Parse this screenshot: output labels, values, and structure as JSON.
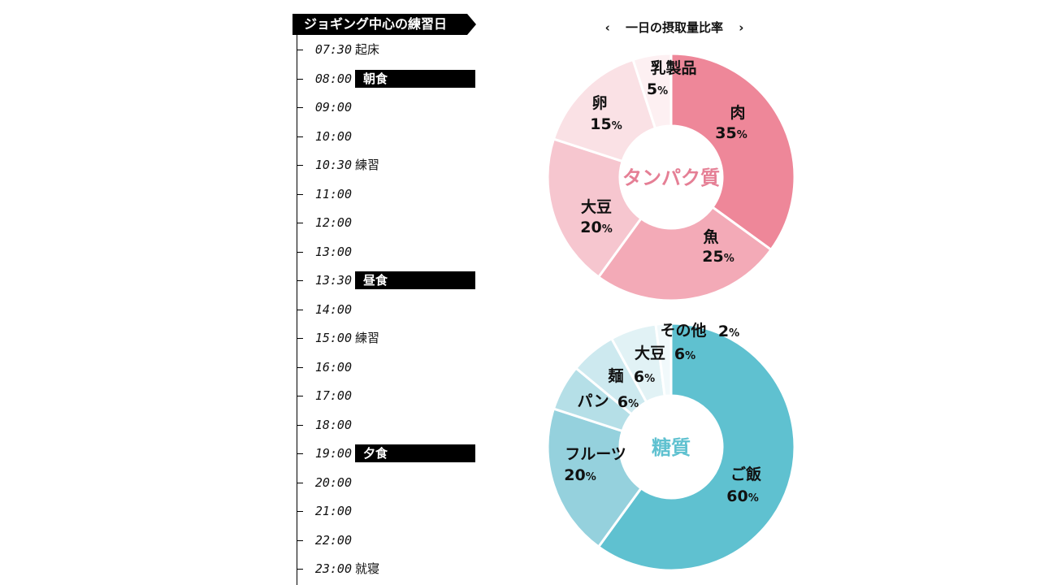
{
  "schedule": {
    "title": "ジョギング中心の練習日",
    "rows": [
      {
        "time": "07:30",
        "activity": "起床",
        "meal": false
      },
      {
        "time": "08:00",
        "activity": "朝食",
        "meal": true
      },
      {
        "time": "09:00",
        "activity": "",
        "meal": false
      },
      {
        "time": "10:00",
        "activity": "",
        "meal": false
      },
      {
        "time": "10:30",
        "activity": "練習",
        "meal": false
      },
      {
        "time": "11:00",
        "activity": "",
        "meal": false
      },
      {
        "time": "12:00",
        "activity": "",
        "meal": false
      },
      {
        "time": "13:00",
        "activity": "",
        "meal": false
      },
      {
        "time": "13:30",
        "activity": "昼食",
        "meal": true
      },
      {
        "time": "14:00",
        "activity": "",
        "meal": false
      },
      {
        "time": "15:00",
        "activity": "練習",
        "meal": false
      },
      {
        "time": "16:00",
        "activity": "",
        "meal": false
      },
      {
        "time": "17:00",
        "activity": "",
        "meal": false
      },
      {
        "time": "18:00",
        "activity": "",
        "meal": false
      },
      {
        "time": "19:00",
        "activity": "夕食",
        "meal": true
      },
      {
        "time": "20:00",
        "activity": "",
        "meal": false
      },
      {
        "time": "21:00",
        "activity": "",
        "meal": false
      },
      {
        "time": "22:00",
        "activity": "",
        "meal": false
      },
      {
        "time": "23:00",
        "activity": "就寝",
        "meal": false
      }
    ]
  },
  "pie_nav": {
    "title": "一日の摂取量比率",
    "prev_glyph": "‹",
    "next_glyph": "›"
  },
  "chart_data": [
    {
      "type": "pie",
      "title": "タンパク質",
      "title_color": "#e57f95",
      "unit": "%",
      "slices": [
        {
          "label": "肉",
          "value": 35,
          "color": "#ee8799"
        },
        {
          "label": "魚",
          "value": 25,
          "color": "#f3aab7"
        },
        {
          "label": "大豆",
          "value": 20,
          "color": "#f6c6cf"
        },
        {
          "label": "卵",
          "value": 15,
          "color": "#fae1e5"
        },
        {
          "label": "乳製品",
          "value": 5,
          "color": "#fdf0f2"
        }
      ]
    },
    {
      "type": "pie",
      "title": "糖質",
      "title_color": "#5fc1d0",
      "unit": "%",
      "slices": [
        {
          "label": "ご飯",
          "value": 60,
          "color": "#5fc1d0"
        },
        {
          "label": "フルーツ",
          "value": 20,
          "color": "#95d1dd"
        },
        {
          "label": "パン",
          "value": 6,
          "color": "#b5dfe7"
        },
        {
          "label": "麺",
          "value": 6,
          "color": "#cde9ef"
        },
        {
          "label": "大豆",
          "value": 6,
          "color": "#e1f2f5"
        },
        {
          "label": "その他",
          "value": 2,
          "color": "#f1f9fb"
        }
      ]
    }
  ]
}
